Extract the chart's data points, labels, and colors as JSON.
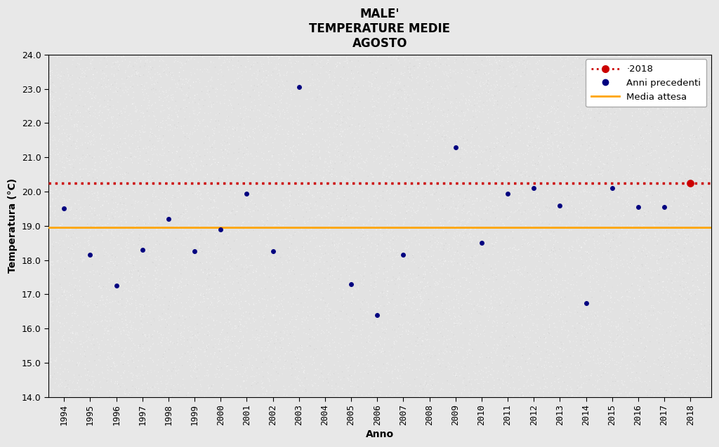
{
  "title_lines": [
    "MALE'",
    "TEMPERATURE MEDIE",
    "AGOSTO"
  ],
  "xlabel": "Anno",
  "ylabel": "Temperatura (°C)",
  "ylim": [
    14.0,
    24.0
  ],
  "yticks": [
    14.0,
    15.0,
    16.0,
    17.0,
    18.0,
    19.0,
    20.0,
    21.0,
    22.0,
    23.0,
    24.0
  ],
  "xlim_left": 1993.4,
  "xlim_right": 2018.8,
  "xtick_years": [
    1994,
    1995,
    1996,
    1997,
    1998,
    1999,
    2000,
    2001,
    2002,
    2003,
    2004,
    2005,
    2006,
    2007,
    2008,
    2009,
    2010,
    2011,
    2012,
    2013,
    2014,
    2015,
    2016,
    2017,
    2018
  ],
  "previous_years_data": {
    "1994": 19.5,
    "1995": 18.15,
    "1996": 17.25,
    "1997": 18.3,
    "1998": 19.2,
    "1999": 18.25,
    "2000": 18.9,
    "2001": 19.95,
    "2002": 18.25,
    "2003": 23.05,
    "2005": 17.3,
    "2006": 16.4,
    "2007": 18.15,
    "2009": 21.3,
    "2010": 18.5,
    "2011": 19.95,
    "2012": 20.1,
    "2013": 19.6,
    "2014": 16.75,
    "2015": 20.1,
    "2016": 19.55,
    "2017": 19.55
  },
  "value_2018": 20.25,
  "media_attesa": 18.95,
  "background_color": "#e8e8e8",
  "plot_bg_color": "#e2e2e2",
  "dot_color_prev": "#000080",
  "dot_color_2018": "#CC0000",
  "line_2018_color": "#CC0000",
  "line_media_color": "#FFA500",
  "legend_labels": [
    "·2018",
    "Anni precedenti",
    "Media attesa"
  ],
  "title_fontsize": 12,
  "axis_label_fontsize": 10,
  "tick_fontsize": 9
}
